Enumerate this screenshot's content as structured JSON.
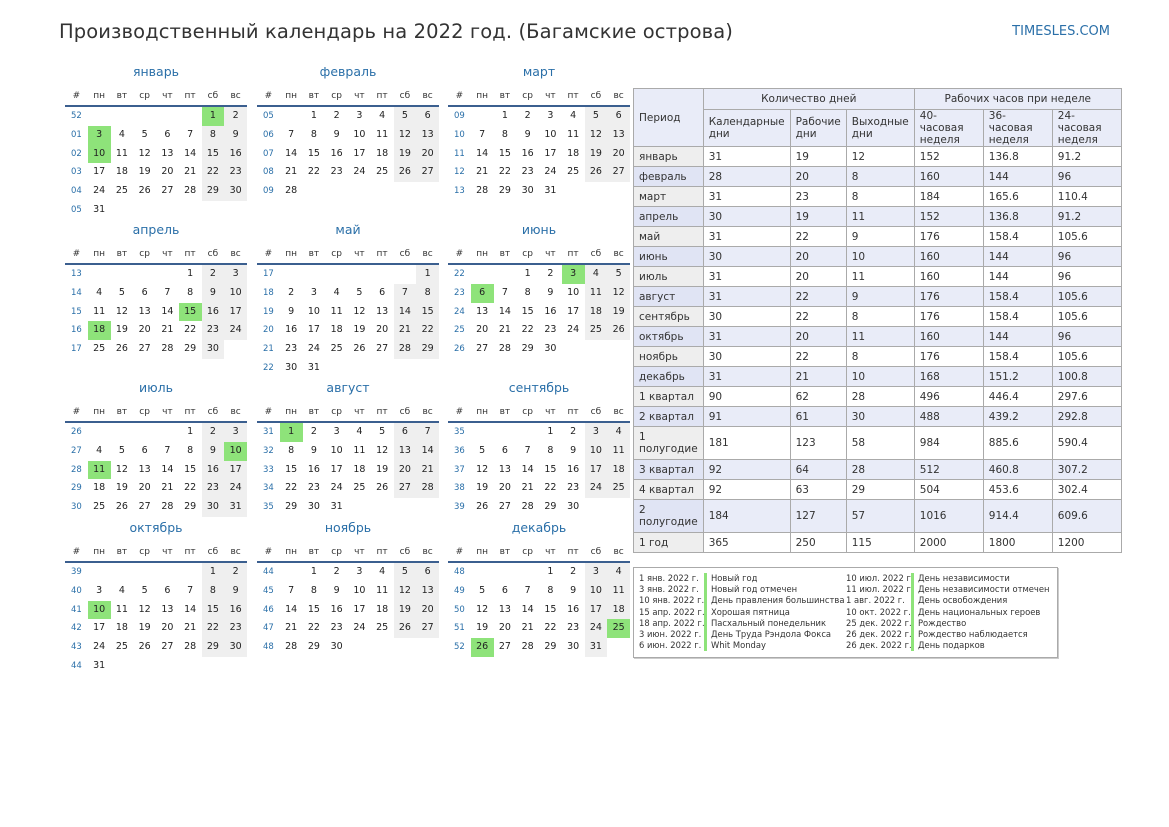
{
  "page": {
    "title": "Производственный календарь на 2022 год. (Багамские острова)",
    "site": "TIMESLES.COM"
  },
  "day_headers": [
    "#",
    "пн",
    "вт",
    "ср",
    "чт",
    "пт",
    "сб",
    "вс"
  ],
  "months": [
    {
      "name": "январь",
      "weeks": [
        {
          "n": "52",
          "d": [
            "",
            "",
            "",
            "",
            "",
            "1",
            "2"
          ]
        },
        {
          "n": "01",
          "d": [
            "3",
            "4",
            "5",
            "6",
            "7",
            "8",
            "9"
          ]
        },
        {
          "n": "02",
          "d": [
            "10",
            "11",
            "12",
            "13",
            "14",
            "15",
            "16"
          ]
        },
        {
          "n": "03",
          "d": [
            "17",
            "18",
            "19",
            "20",
            "21",
            "22",
            "23"
          ]
        },
        {
          "n": "04",
          "d": [
            "24",
            "25",
            "26",
            "27",
            "28",
            "29",
            "30"
          ]
        },
        {
          "n": "05",
          "d": [
            "31",
            "",
            "",
            "",
            "",
            "",
            ""
          ]
        }
      ],
      "holidays": [
        "1",
        "3",
        "10"
      ]
    },
    {
      "name": "февраль",
      "weeks": [
        {
          "n": "05",
          "d": [
            "",
            "1",
            "2",
            "3",
            "4",
            "5",
            "6"
          ]
        },
        {
          "n": "06",
          "d": [
            "7",
            "8",
            "9",
            "10",
            "11",
            "12",
            "13"
          ]
        },
        {
          "n": "07",
          "d": [
            "14",
            "15",
            "16",
            "17",
            "18",
            "19",
            "20"
          ]
        },
        {
          "n": "08",
          "d": [
            "21",
            "22",
            "23",
            "24",
            "25",
            "26",
            "27"
          ]
        },
        {
          "n": "09",
          "d": [
            "28",
            "",
            "",
            "",
            "",
            "",
            ""
          ]
        }
      ],
      "holidays": []
    },
    {
      "name": "март",
      "weeks": [
        {
          "n": "09",
          "d": [
            "",
            "1",
            "2",
            "3",
            "4",
            "5",
            "6"
          ]
        },
        {
          "n": "10",
          "d": [
            "7",
            "8",
            "9",
            "10",
            "11",
            "12",
            "13"
          ]
        },
        {
          "n": "11",
          "d": [
            "14",
            "15",
            "16",
            "17",
            "18",
            "19",
            "20"
          ]
        },
        {
          "n": "12",
          "d": [
            "21",
            "22",
            "23",
            "24",
            "25",
            "26",
            "27"
          ]
        },
        {
          "n": "13",
          "d": [
            "28",
            "29",
            "30",
            "31",
            "",
            "",
            ""
          ]
        }
      ],
      "holidays": []
    },
    {
      "name": "апрель",
      "weeks": [
        {
          "n": "13",
          "d": [
            "",
            "",
            "",
            "",
            "1",
            "2",
            "3"
          ]
        },
        {
          "n": "14",
          "d": [
            "4",
            "5",
            "6",
            "7",
            "8",
            "9",
            "10"
          ]
        },
        {
          "n": "15",
          "d": [
            "11",
            "12",
            "13",
            "14",
            "15",
            "16",
            "17"
          ]
        },
        {
          "n": "16",
          "d": [
            "18",
            "19",
            "20",
            "21",
            "22",
            "23",
            "24"
          ]
        },
        {
          "n": "17",
          "d": [
            "25",
            "26",
            "27",
            "28",
            "29",
            "30",
            ""
          ]
        }
      ],
      "holidays": [
        "15",
        "18"
      ]
    },
    {
      "name": "май",
      "weeks": [
        {
          "n": "17",
          "d": [
            "",
            "",
            "",
            "",
            "",
            "",
            "1"
          ]
        },
        {
          "n": "18",
          "d": [
            "2",
            "3",
            "4",
            "5",
            "6",
            "7",
            "8"
          ]
        },
        {
          "n": "19",
          "d": [
            "9",
            "10",
            "11",
            "12",
            "13",
            "14",
            "15"
          ]
        },
        {
          "n": "20",
          "d": [
            "16",
            "17",
            "18",
            "19",
            "20",
            "21",
            "22"
          ]
        },
        {
          "n": "21",
          "d": [
            "23",
            "24",
            "25",
            "26",
            "27",
            "28",
            "29"
          ]
        },
        {
          "n": "22",
          "d": [
            "30",
            "31",
            "",
            "",
            "",
            "",
            ""
          ]
        }
      ],
      "holidays": []
    },
    {
      "name": "июнь",
      "weeks": [
        {
          "n": "22",
          "d": [
            "",
            "",
            "1",
            "2",
            "3",
            "4",
            "5"
          ]
        },
        {
          "n": "23",
          "d": [
            "6",
            "7",
            "8",
            "9",
            "10",
            "11",
            "12"
          ]
        },
        {
          "n": "24",
          "d": [
            "13",
            "14",
            "15",
            "16",
            "17",
            "18",
            "19"
          ]
        },
        {
          "n": "25",
          "d": [
            "20",
            "21",
            "22",
            "23",
            "24",
            "25",
            "26"
          ]
        },
        {
          "n": "26",
          "d": [
            "27",
            "28",
            "29",
            "30",
            "",
            "",
            ""
          ]
        }
      ],
      "holidays": [
        "3",
        "6"
      ]
    },
    {
      "name": "июль",
      "weeks": [
        {
          "n": "26",
          "d": [
            "",
            "",
            "",
            "",
            "1",
            "2",
            "3"
          ]
        },
        {
          "n": "27",
          "d": [
            "4",
            "5",
            "6",
            "7",
            "8",
            "9",
            "10"
          ]
        },
        {
          "n": "28",
          "d": [
            "11",
            "12",
            "13",
            "14",
            "15",
            "16",
            "17"
          ]
        },
        {
          "n": "29",
          "d": [
            "18",
            "19",
            "20",
            "21",
            "22",
            "23",
            "24"
          ]
        },
        {
          "n": "30",
          "d": [
            "25",
            "26",
            "27",
            "28",
            "29",
            "30",
            "31"
          ]
        }
      ],
      "holidays": [
        "10",
        "11"
      ]
    },
    {
      "name": "август",
      "weeks": [
        {
          "n": "31",
          "d": [
            "1",
            "2",
            "3",
            "4",
            "5",
            "6",
            "7"
          ]
        },
        {
          "n": "32",
          "d": [
            "8",
            "9",
            "10",
            "11",
            "12",
            "13",
            "14"
          ]
        },
        {
          "n": "33",
          "d": [
            "15",
            "16",
            "17",
            "18",
            "19",
            "20",
            "21"
          ]
        },
        {
          "n": "34",
          "d": [
            "22",
            "23",
            "24",
            "25",
            "26",
            "27",
            "28"
          ]
        },
        {
          "n": "35",
          "d": [
            "29",
            "30",
            "31",
            "",
            "",
            "",
            ""
          ]
        }
      ],
      "holidays": [
        "1"
      ]
    },
    {
      "name": "сентябрь",
      "weeks": [
        {
          "n": "35",
          "d": [
            "",
            "",
            "",
            "1",
            "2",
            "3",
            "4"
          ]
        },
        {
          "n": "36",
          "d": [
            "5",
            "6",
            "7",
            "8",
            "9",
            "10",
            "11"
          ]
        },
        {
          "n": "37",
          "d": [
            "12",
            "13",
            "14",
            "15",
            "16",
            "17",
            "18"
          ]
        },
        {
          "n": "38",
          "d": [
            "19",
            "20",
            "21",
            "22",
            "23",
            "24",
            "25"
          ]
        },
        {
          "n": "39",
          "d": [
            "26",
            "27",
            "28",
            "29",
            "30",
            "",
            ""
          ]
        }
      ],
      "holidays": []
    },
    {
      "name": "октябрь",
      "weeks": [
        {
          "n": "39",
          "d": [
            "",
            "",
            "",
            "",
            "",
            "1",
            "2"
          ]
        },
        {
          "n": "40",
          "d": [
            "3",
            "4",
            "5",
            "6",
            "7",
            "8",
            "9"
          ]
        },
        {
          "n": "41",
          "d": [
            "10",
            "11",
            "12",
            "13",
            "14",
            "15",
            "16"
          ]
        },
        {
          "n": "42",
          "d": [
            "17",
            "18",
            "19",
            "20",
            "21",
            "22",
            "23"
          ]
        },
        {
          "n": "43",
          "d": [
            "24",
            "25",
            "26",
            "27",
            "28",
            "29",
            "30"
          ]
        },
        {
          "n": "44",
          "d": [
            "31",
            "",
            "",
            "",
            "",
            "",
            ""
          ]
        }
      ],
      "holidays": [
        "10"
      ]
    },
    {
      "name": "ноябрь",
      "weeks": [
        {
          "n": "44",
          "d": [
            "",
            "1",
            "2",
            "3",
            "4",
            "5",
            "6"
          ]
        },
        {
          "n": "45",
          "d": [
            "7",
            "8",
            "9",
            "10",
            "11",
            "12",
            "13"
          ]
        },
        {
          "n": "46",
          "d": [
            "14",
            "15",
            "16",
            "17",
            "18",
            "19",
            "20"
          ]
        },
        {
          "n": "47",
          "d": [
            "21",
            "22",
            "23",
            "24",
            "25",
            "26",
            "27"
          ]
        },
        {
          "n": "48",
          "d": [
            "28",
            "29",
            "30",
            "",
            "",
            "",
            ""
          ]
        }
      ],
      "holidays": []
    },
    {
      "name": "декабрь",
      "weeks": [
        {
          "n": "48",
          "d": [
            "",
            "",
            "",
            "1",
            "2",
            "3",
            "4"
          ]
        },
        {
          "n": "49",
          "d": [
            "5",
            "6",
            "7",
            "8",
            "9",
            "10",
            "11"
          ]
        },
        {
          "n": "50",
          "d": [
            "12",
            "13",
            "14",
            "15",
            "16",
            "17",
            "18"
          ]
        },
        {
          "n": "51",
          "d": [
            "19",
            "20",
            "21",
            "22",
            "23",
            "24",
            "25"
          ]
        },
        {
          "n": "52",
          "d": [
            "26",
            "27",
            "28",
            "29",
            "30",
            "31",
            ""
          ]
        }
      ],
      "holidays": [
        "25",
        "26"
      ]
    }
  ],
  "stats": {
    "period_header": "Период",
    "days_group": "Количество дней",
    "hours_group": "Рабочих часов при неделе",
    "columns": [
      "Календарные дни",
      "Рабочие дни",
      "Выходные дни",
      "40-часовая неделя",
      "36-часовая неделя",
      "24-часовая неделя"
    ],
    "rows": [
      [
        "январь",
        "31",
        "19",
        "12",
        "152",
        "136.8",
        "91.2"
      ],
      [
        "февраль",
        "28",
        "20",
        "8",
        "160",
        "144",
        "96"
      ],
      [
        "март",
        "31",
        "23",
        "8",
        "184",
        "165.6",
        "110.4"
      ],
      [
        "апрель",
        "30",
        "19",
        "11",
        "152",
        "136.8",
        "91.2"
      ],
      [
        "май",
        "31",
        "22",
        "9",
        "176",
        "158.4",
        "105.6"
      ],
      [
        "июнь",
        "30",
        "20",
        "10",
        "160",
        "144",
        "96"
      ],
      [
        "июль",
        "31",
        "20",
        "11",
        "160",
        "144",
        "96"
      ],
      [
        "август",
        "31",
        "22",
        "9",
        "176",
        "158.4",
        "105.6"
      ],
      [
        "сентябрь",
        "30",
        "22",
        "8",
        "176",
        "158.4",
        "105.6"
      ],
      [
        "октябрь",
        "31",
        "20",
        "11",
        "160",
        "144",
        "96"
      ],
      [
        "ноябрь",
        "30",
        "22",
        "8",
        "176",
        "158.4",
        "105.6"
      ],
      [
        "декабрь",
        "31",
        "21",
        "10",
        "168",
        "151.2",
        "100.8"
      ],
      [
        "1 квартал",
        "90",
        "62",
        "28",
        "496",
        "446.4",
        "297.6"
      ],
      [
        "2 квартал",
        "91",
        "61",
        "30",
        "488",
        "439.2",
        "292.8"
      ],
      [
        "1 полугодие",
        "181",
        "123",
        "58",
        "984",
        "885.6",
        "590.4"
      ],
      [
        "3 квартал",
        "92",
        "64",
        "28",
        "512",
        "460.8",
        "307.2"
      ],
      [
        "4 квартал",
        "92",
        "63",
        "29",
        "504",
        "453.6",
        "302.4"
      ],
      [
        "2 полугодие",
        "184",
        "127",
        "57",
        "1016",
        "914.4",
        "609.6"
      ],
      [
        "1 год",
        "365",
        "250",
        "115",
        "2000",
        "1800",
        "1200"
      ]
    ]
  },
  "holidays_list": {
    "left": [
      {
        "date": "1 янв. 2022 г.",
        "name": "Новый год"
      },
      {
        "date": "3 янв. 2022 г.",
        "name": "Новый год отмечен"
      },
      {
        "date": "10 янв. 2022 г.",
        "name": "День правления большинства"
      },
      {
        "date": "15 апр. 2022 г.",
        "name": "Хорошая пятница"
      },
      {
        "date": "18 апр. 2022 г.",
        "name": "Пасхальный понедельник"
      },
      {
        "date": "3 июн. 2022 г.",
        "name": "День Труда Рэндола Фокса"
      },
      {
        "date": "6 июн. 2022 г.",
        "name": "Whit Monday"
      }
    ],
    "right": [
      {
        "date": "10 июл. 2022 г.",
        "name": "День независимости"
      },
      {
        "date": "11 июл. 2022 г.",
        "name": "День независимости отмечен"
      },
      {
        "date": "1 авг. 2022 г.",
        "name": "День освобождения"
      },
      {
        "date": "10 окт. 2022 г.",
        "name": "День национальных героев"
      },
      {
        "date": "25 дек. 2022 г.",
        "name": "Рождество"
      },
      {
        "date": "26 дек. 2022 г.",
        "name": "Рождество наблюдается"
      },
      {
        "date": "26 дек. 2022 г.",
        "name": "День подарков"
      }
    ]
  },
  "colors": {
    "accent": "#2a6fa8",
    "holiday": "#8ee37a",
    "weekend": "#efefef",
    "table_header": "#e9ecf8"
  }
}
